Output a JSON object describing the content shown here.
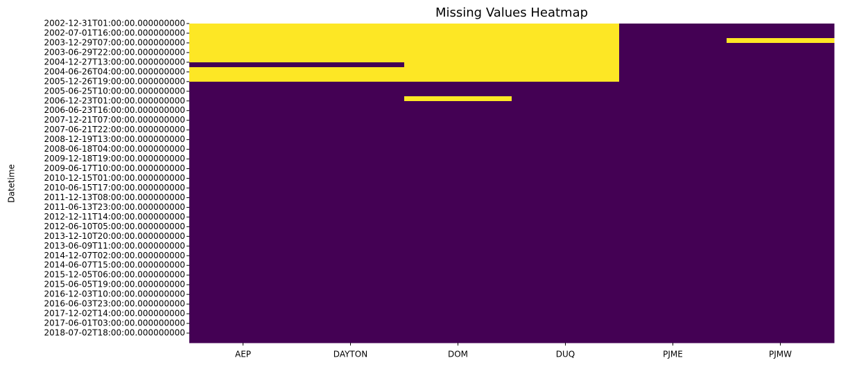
{
  "chart_data": {
    "type": "heatmap",
    "title": "Missing Values Heatmap",
    "ylabel": "Datetime",
    "categories": [
      "AEP",
      "DAYTON",
      "DOM",
      "DUQ",
      "PJME",
      "PJMW"
    ],
    "rows": [
      "2002-12-31T01:00:00.000000000",
      null,
      "2002-07-01T16:00:00.000000000",
      null,
      "2003-12-29T07:00:00.000000000",
      null,
      "2003-06-29T22:00:00.000000000",
      null,
      "2004-12-27T13:00:00.000000000",
      null,
      "2004-06-26T04:00:00.000000000",
      null,
      "2005-12-26T19:00:00.000000000",
      null,
      "2005-06-25T10:00:00.000000000",
      null,
      "2006-12-23T01:00:00.000000000",
      null,
      "2006-06-23T16:00:00.000000000",
      null,
      "2007-12-21T07:00:00.000000000",
      null,
      "2007-06-21T22:00:00.000000000",
      null,
      "2008-12-19T13:00:00.000000000",
      null,
      "2008-06-18T04:00:00.000000000",
      null,
      "2009-12-18T19:00:00.000000000",
      null,
      "2009-06-17T10:00:00.000000000",
      null,
      "2010-12-15T01:00:00.000000000",
      null,
      "2010-06-15T17:00:00.000000000",
      null,
      "2011-12-13T08:00:00.000000000",
      null,
      "2011-06-13T23:00:00.000000000",
      null,
      "2012-12-11T14:00:00.000000000",
      null,
      "2012-06-10T05:00:00.000000000",
      null,
      "2013-12-10T20:00:00.000000000",
      null,
      "2013-06-09T11:00:00.000000000",
      null,
      "2014-12-07T02:00:00.000000000",
      null,
      "2014-06-07T15:00:00.000000000",
      null,
      "2015-12-05T06:00:00.000000000",
      null,
      "2015-06-05T19:00:00.000000000",
      null,
      "2016-12-03T10:00:00.000000000",
      null,
      "2016-06-03T23:00:00.000000000",
      null,
      "2017-12-02T14:00:00.000000000",
      null,
      "2017-06-01T03:00:00.000000000",
      null,
      "2018-07-02T18:00:00.000000000",
      null
    ],
    "values": [
      [
        1,
        1,
        1,
        1,
        0,
        0
      ],
      [
        1,
        1,
        1,
        1,
        0,
        0
      ],
      [
        1,
        1,
        1,
        1,
        0,
        0
      ],
      [
        1,
        1,
        1,
        1,
        0,
        1
      ],
      [
        1,
        1,
        1,
        1,
        0,
        0
      ],
      [
        1,
        1,
        1,
        1,
        0,
        0
      ],
      [
        1,
        1,
        1,
        1,
        0,
        0
      ],
      [
        1,
        1,
        1,
        1,
        0,
        0
      ],
      [
        0,
        0,
        1,
        1,
        0,
        0
      ],
      [
        1,
        1,
        1,
        1,
        0,
        0
      ],
      [
        1,
        1,
        1,
        1,
        0,
        0
      ],
      [
        1,
        1,
        1,
        1,
        0,
        0
      ],
      [
        0,
        0,
        0,
        0,
        0,
        0
      ],
      [
        0,
        0,
        0,
        0,
        0,
        0
      ],
      [
        0,
        0,
        0,
        0,
        0,
        0
      ],
      [
        0,
        0,
        1,
        0,
        0,
        0
      ],
      [
        0,
        0,
        0,
        0,
        0,
        0
      ],
      [
        0,
        0,
        0,
        0,
        0,
        0
      ],
      [
        0,
        0,
        0,
        0,
        0,
        0
      ],
      [
        0,
        0,
        0,
        0,
        0,
        0
      ],
      [
        0,
        0,
        0,
        0,
        0,
        0
      ],
      [
        0,
        0,
        0,
        0,
        0,
        0
      ],
      [
        0,
        0,
        0,
        0,
        0,
        0
      ],
      [
        0,
        0,
        0,
        0,
        0,
        0
      ],
      [
        0,
        0,
        0,
        0,
        0,
        0
      ],
      [
        0,
        0,
        0,
        0,
        0,
        0
      ],
      [
        0,
        0,
        0,
        0,
        0,
        0
      ],
      [
        0,
        0,
        0,
        0,
        0,
        0
      ],
      [
        0,
        0,
        0,
        0,
        0,
        0
      ],
      [
        0,
        0,
        0,
        0,
        0,
        0
      ],
      [
        0,
        0,
        0,
        0,
        0,
        0
      ],
      [
        0,
        0,
        0,
        0,
        0,
        0
      ],
      [
        0,
        0,
        0,
        0,
        0,
        0
      ],
      [
        0,
        0,
        0,
        0,
        0,
        0
      ],
      [
        0,
        0,
        0,
        0,
        0,
        0
      ],
      [
        0,
        0,
        0,
        0,
        0,
        0
      ],
      [
        0,
        0,
        0,
        0,
        0,
        0
      ],
      [
        0,
        0,
        0,
        0,
        0,
        0
      ],
      [
        0,
        0,
        0,
        0,
        0,
        0
      ],
      [
        0,
        0,
        0,
        0,
        0,
        0
      ],
      [
        0,
        0,
        0,
        0,
        0,
        0
      ],
      [
        0,
        0,
        0,
        0,
        0,
        0
      ],
      [
        0,
        0,
        0,
        0,
        0,
        0
      ],
      [
        0,
        0,
        0,
        0,
        0,
        0
      ],
      [
        0,
        0,
        0,
        0,
        0,
        0
      ],
      [
        0,
        0,
        0,
        0,
        0,
        0
      ],
      [
        0,
        0,
        0,
        0,
        0,
        0
      ],
      [
        0,
        0,
        0,
        0,
        0,
        0
      ],
      [
        0,
        0,
        0,
        0,
        0,
        0
      ],
      [
        0,
        0,
        0,
        0,
        0,
        0
      ],
      [
        0,
        0,
        0,
        0,
        0,
        0
      ],
      [
        0,
        0,
        0,
        0,
        0,
        0
      ],
      [
        0,
        0,
        0,
        0,
        0,
        0
      ],
      [
        0,
        0,
        0,
        0,
        0,
        0
      ],
      [
        0,
        0,
        0,
        0,
        0,
        0
      ],
      [
        0,
        0,
        0,
        0,
        0,
        0
      ],
      [
        0,
        0,
        0,
        0,
        0,
        0
      ],
      [
        0,
        0,
        0,
        0,
        0,
        0
      ],
      [
        0,
        0,
        0,
        0,
        0,
        0
      ],
      [
        0,
        0,
        0,
        0,
        0,
        0
      ],
      [
        0,
        0,
        0,
        0,
        0,
        0
      ],
      [
        0,
        0,
        0,
        0,
        0,
        0
      ],
      [
        0,
        0,
        0,
        0,
        0,
        0
      ],
      [
        0,
        0,
        0,
        0,
        0,
        0
      ],
      [
        0,
        0,
        0,
        0,
        0,
        0
      ],
      [
        0,
        0,
        0,
        0,
        0,
        0
      ]
    ],
    "colors": [
      "#440154",
      "#fde725"
    ]
  }
}
